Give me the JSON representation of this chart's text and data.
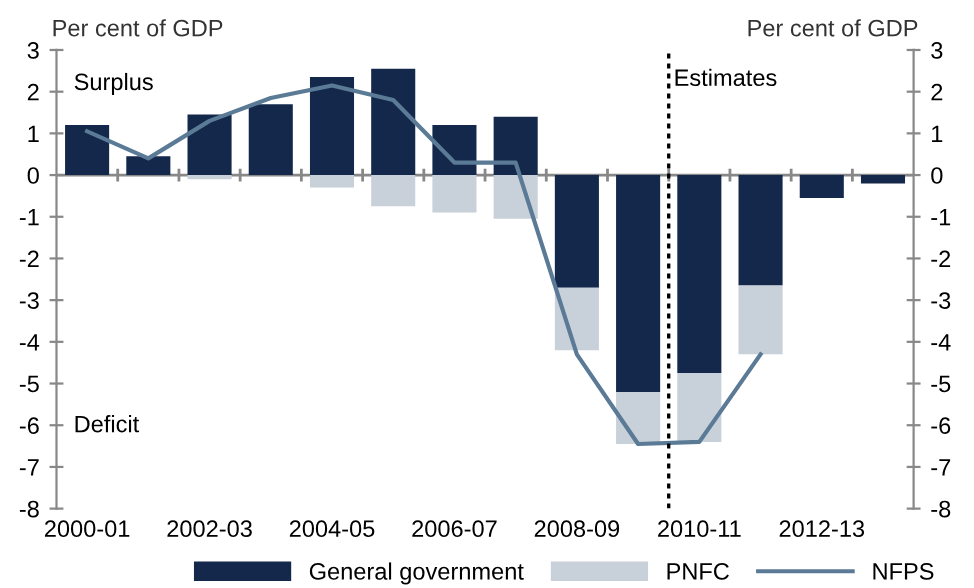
{
  "chart_data": {
    "type": "bar",
    "stacked": true,
    "categories": [
      "2000-01",
      null,
      "2002-03",
      null,
      "2004-05",
      null,
      "2006-07",
      null,
      "2008-09",
      null,
      "2010-11",
      null,
      "2012-13",
      null
    ],
    "series": [
      {
        "name": "General government",
        "color": "#14284b",
        "values": [
          1.2,
          0.45,
          1.45,
          1.7,
          2.35,
          2.55,
          1.2,
          1.4,
          -2.7,
          -5.2,
          -4.75,
          -2.65,
          -0.55,
          -0.2
        ]
      },
      {
        "name": "PNFC",
        "color": "#c8d0da",
        "values": [
          0,
          0,
          -0.1,
          0,
          -0.3,
          -0.75,
          -0.9,
          -1.05,
          -1.5,
          -1.25,
          -1.65,
          -1.65,
          0,
          0
        ]
      },
      {
        "name": "NFPS",
        "type": "line",
        "color": "#5a7a96",
        "values": [
          1.05,
          0.4,
          1.3,
          1.85,
          2.15,
          1.8,
          0.3,
          0.3,
          -4.3,
          -6.45,
          -6.4,
          -4.3,
          null,
          null
        ]
      }
    ],
    "ylabel": "Per cent of GDP",
    "y2label": "Per cent of GDP",
    "ylim": [
      -8,
      3
    ],
    "yticks": [
      -8,
      -7,
      -6,
      -5,
      -4,
      -3,
      -2,
      -1,
      0,
      1,
      2,
      3
    ],
    "y2lim": [
      -8,
      3
    ],
    "y2ticks": [
      -8,
      -7,
      -6,
      -5,
      -4,
      -3,
      -2,
      -1,
      0,
      1,
      2,
      3
    ],
    "annotations": [
      "Surplus",
      "Deficit",
      "Estimates"
    ],
    "legend": "bottom",
    "grid": false
  }
}
